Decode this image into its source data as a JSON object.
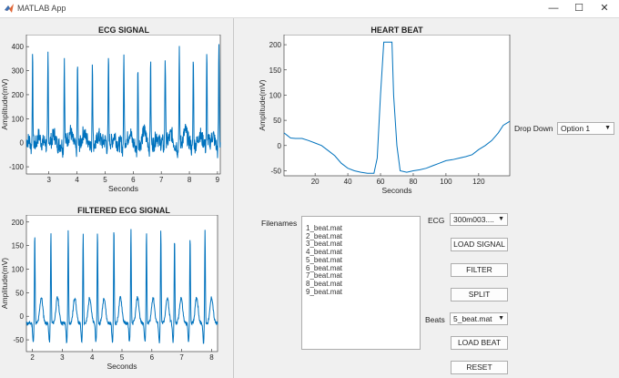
{
  "window": {
    "title": "MATLAB App",
    "minimize": "—",
    "maximize": "☐",
    "close": "✕"
  },
  "colors": {
    "line": "#0072bd",
    "axes_bg": "#ffffff"
  },
  "ecg_panel": {
    "chart_data": {
      "type": "line",
      "title": "ECG SIGNAL",
      "xlabel": "Seconds",
      "ylabel": "Amplitude(mV)",
      "xlim": [
        2.2,
        9.1
      ],
      "ylim": [
        -130,
        450
      ],
      "xticks": [
        3,
        4,
        5,
        6,
        7,
        8,
        9
      ],
      "yticks": [
        -100,
        0,
        100,
        200,
        300,
        400
      ],
      "peaks_x": [
        2.42,
        2.97,
        3.55,
        4.02,
        4.55,
        5.12,
        5.67,
        6.17,
        6.62,
        7.14,
        7.64,
        8.14,
        8.62,
        9.05
      ],
      "peak_values": [
        350,
        355,
        355,
        350,
        355,
        355,
        355,
        340,
        345,
        355,
        385,
        380,
        355,
        420
      ]
    }
  },
  "filtered_panel": {
    "chart_data": {
      "type": "line",
      "title": "FILTERED ECG SIGNAL",
      "xlabel": "Seconds",
      "ylabel": "Amplitude(mV)",
      "xlim": [
        1.8,
        8.2
      ],
      "ylim": [
        -75,
        215
      ],
      "xticks": [
        2,
        3,
        4,
        5,
        6,
        7,
        8
      ],
      "yticks": [
        -50,
        0,
        50,
        100,
        150,
        200
      ],
      "peaks_x": [
        2.08,
        2.62,
        3.2,
        3.7,
        4.18,
        4.73,
        5.3,
        5.82,
        6.3,
        6.76,
        7.28,
        7.78
      ],
      "peak_values": [
        195,
        195,
        200,
        195,
        200,
        205,
        200,
        195,
        200,
        185,
        190,
        200
      ]
    }
  },
  "heartbeat_panel": {
    "chart_data": {
      "type": "line",
      "title": "HEART BEAT",
      "xlabel": "Seconds",
      "ylabel": "Amplitude(mV)",
      "xlim": [
        1,
        139
      ],
      "ylim": [
        -60,
        220
      ],
      "xticks": [
        20,
        40,
        60,
        80,
        100,
        120
      ],
      "yticks": [
        -50,
        0,
        50,
        100,
        150,
        200
      ],
      "x": [
        1,
        3,
        5,
        8,
        12,
        16,
        20,
        24,
        28,
        32,
        36,
        40,
        44,
        48,
        52,
        56,
        58,
        60,
        62,
        64,
        67,
        68,
        70,
        72,
        76,
        80,
        84,
        88,
        92,
        96,
        100,
        104,
        108,
        112,
        116,
        120,
        124,
        128,
        132,
        135,
        139
      ],
      "y": [
        25,
        20,
        15,
        14,
        14,
        10,
        5,
        0,
        -10,
        -20,
        -35,
        -45,
        -50,
        -53,
        -55,
        -55,
        -25,
        100,
        205,
        205,
        205,
        100,
        0,
        -50,
        -53,
        -50,
        -48,
        -45,
        -40,
        -35,
        -30,
        -28,
        -25,
        -22,
        -18,
        -8,
        0,
        10,
        25,
        40,
        48
      ]
    }
  },
  "controls": {
    "dropdown_label": "Drop Down",
    "dropdown_value": "Option 1",
    "filenames_label": "Filenames",
    "files": [
      "1_beat.mat",
      "2_beat.mat",
      "3_beat.mat",
      "4_beat.mat",
      "5_beat.mat",
      "6_beat.mat",
      "7_beat.mat",
      "8_beat.mat",
      "9_beat.mat"
    ],
    "ecg_label": "ECG",
    "ecg_value": "300m003....",
    "load_signal": "LOAD SIGNAL",
    "filter": "FILTER",
    "split": "SPLIT",
    "beats_label": "Beats",
    "beats_value": "5_beat.mat",
    "load_beat": "LOAD BEAT",
    "reset": "RESET"
  }
}
